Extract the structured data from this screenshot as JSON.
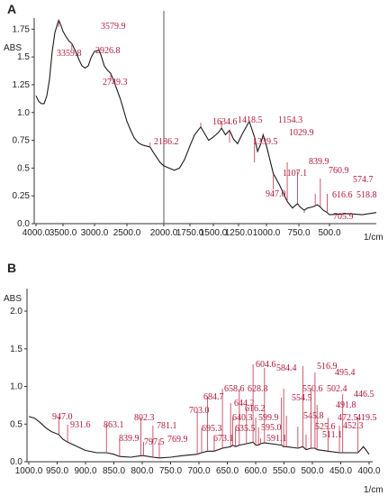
{
  "chart_data": [
    {
      "type": "line",
      "panel": "A",
      "ylabel": "ABS",
      "xunit": "1/cm",
      "xlim": [
        4000,
        400
      ],
      "ylim": [
        0,
        1.85
      ],
      "y_ticks": [
        0.0,
        0.25,
        0.5,
        0.75,
        1.0,
        1.25,
        1.5,
        1.75
      ],
      "y_tick_labels": [
        "0.0",
        "0.25",
        "0.5",
        "0.75",
        "1.0",
        "1.25",
        "1.5",
        "1.75"
      ],
      "x_ticks": [
        4000,
        3500,
        3000,
        2500,
        2000,
        1750,
        1500,
        1250,
        1000,
        750,
        500
      ],
      "x_tick_labels": [
        "4000.0",
        "3500.0",
        "3000.0",
        "2500.0",
        "2000.0",
        "1750.0",
        "1500.0",
        "1250.0",
        "1000.0",
        "750.0",
        "500.0"
      ],
      "divider_x": 2000,
      "x": [
        4000,
        3950,
        3900,
        3850,
        3800,
        3750,
        3700,
        3650,
        3600,
        3579.9,
        3550,
        3500,
        3450,
        3400,
        3359.8,
        3300,
        3250,
        3200,
        3150,
        3100,
        3050,
        3000,
        2926.8,
        2880,
        2850,
        2800,
        2749.3,
        2700,
        2650,
        2600,
        2550,
        2500,
        2450,
        2400,
        2350,
        2300,
        2250,
        2186.2,
        2150,
        2100,
        2050,
        2000,
        1950,
        1900,
        1850,
        1800,
        1750,
        1700,
        1634.6,
        1600,
        1550,
        1500,
        1450,
        1418.5,
        1380,
        1339.5,
        1300,
        1260,
        1220,
        1154.3,
        1107.1,
        1080,
        1050,
        1029.9,
        1000,
        947.0,
        900,
        860,
        839.9,
        800,
        760.9,
        740,
        705.9,
        680,
        640,
        616.6,
        600,
        574.7,
        550,
        518.8,
        500,
        460,
        430,
        400
      ],
      "y": [
        1.15,
        1.1,
        1.08,
        1.08,
        1.15,
        1.3,
        1.55,
        1.72,
        1.8,
        1.83,
        1.8,
        1.73,
        1.68,
        1.64,
        1.62,
        1.55,
        1.48,
        1.42,
        1.4,
        1.42,
        1.5,
        1.55,
        1.56,
        1.48,
        1.42,
        1.38,
        1.35,
        1.28,
        1.2,
        1.12,
        1.02,
        0.92,
        0.84,
        0.77,
        0.73,
        0.71,
        0.7,
        0.69,
        0.65,
        0.6,
        0.55,
        0.52,
        0.5,
        0.48,
        0.5,
        0.58,
        0.7,
        0.8,
        0.87,
        0.82,
        0.75,
        0.78,
        0.82,
        0.86,
        0.8,
        0.84,
        0.76,
        0.72,
        0.8,
        0.92,
        0.78,
        0.65,
        0.72,
        0.8,
        0.7,
        0.45,
        0.35,
        0.25,
        0.2,
        0.14,
        0.18,
        0.15,
        0.12,
        0.14,
        0.15,
        0.16,
        0.17,
        0.15,
        0.12,
        0.1,
        0.08,
        0.09,
        0.08,
        0.1
      ],
      "annotations": [
        {
          "label": "3579.9",
          "x": 3579.9
        },
        {
          "label": "3359.8",
          "x": 3359.8
        },
        {
          "label": "2926.8",
          "x": 2926.8
        },
        {
          "label": "2749.3",
          "x": 2749.3
        },
        {
          "label": "2186.2",
          "x": 2186.2
        },
        {
          "label": "1634.6",
          "x": 1634.6
        },
        {
          "label": "1418.5",
          "x": 1418.5
        },
        {
          "label": "1339.5",
          "x": 1339.5
        },
        {
          "label": "1154.3",
          "x": 1154.3
        },
        {
          "label": "1107.1",
          "x": 1107.1
        },
        {
          "label": "1029.9",
          "x": 1029.9
        },
        {
          "label": "947.0",
          "x": 947.0
        },
        {
          "label": "839.9",
          "x": 839.9
        },
        {
          "label": "760.9",
          "x": 760.9
        },
        {
          "label": "705.9",
          "x": 705.9
        },
        {
          "label": "616.6",
          "x": 616.6
        },
        {
          "label": "574.7",
          "x": 574.7
        },
        {
          "label": "518.8",
          "x": 518.8
        }
      ]
    },
    {
      "type": "line",
      "panel": "B",
      "ylabel": "ABS",
      "xunit": "1/cm",
      "xlim": [
        1000,
        400
      ],
      "ylim": [
        0,
        2.3
      ],
      "y_ticks": [
        0.0,
        0.5,
        1.0,
        1.5,
        2.0
      ],
      "y_tick_labels": [
        "0.0",
        "0.5",
        "1.0",
        "1.5",
        "2.0"
      ],
      "x_ticks": [
        1000,
        950,
        900,
        850,
        800,
        750,
        700,
        650,
        600,
        550,
        500,
        450,
        400
      ],
      "x_tick_labels": [
        "1000.0",
        "950.0",
        "900.0",
        "850.0",
        "800.0",
        "750.0",
        "700.0",
        "650.0",
        "600.0",
        "550.0",
        "500.0",
        "450.0",
        "400.0"
      ],
      "x": [
        1000,
        990,
        980,
        970,
        960,
        947.0,
        940,
        931.6,
        920,
        900,
        880,
        863.1,
        850,
        839.9,
        820,
        802.3,
        797.5,
        781.1,
        769.9,
        750,
        730,
        703.0,
        695.3,
        684.7,
        673.1,
        658.6,
        644.2,
        640.3,
        635.5,
        628.8,
        616.2,
        604.6,
        599.9,
        595.0,
        591.1,
        584.4,
        554.5,
        550.6,
        545.8,
        525.6,
        516.9,
        511.1,
        502.4,
        495.4,
        491.8,
        472.5,
        452.3,
        446.5,
        430,
        419.5,
        410,
        400
      ],
      "y": [
        0.6,
        0.58,
        0.52,
        0.45,
        0.4,
        0.36,
        0.3,
        0.26,
        0.22,
        0.15,
        0.12,
        0.12,
        0.1,
        0.07,
        0.06,
        0.08,
        0.08,
        0.06,
        0.05,
        0.06,
        0.08,
        0.1,
        0.12,
        0.14,
        0.14,
        0.18,
        0.2,
        0.22,
        0.2,
        0.22,
        0.24,
        0.26,
        0.22,
        0.22,
        0.24,
        0.25,
        0.22,
        0.2,
        0.2,
        0.18,
        0.2,
        0.16,
        0.18,
        0.18,
        0.16,
        0.14,
        0.12,
        0.12,
        0.12,
        0.12,
        0.2,
        0.1
      ],
      "annotations": [
        {
          "label": "947.0",
          "x": 947.0
        },
        {
          "label": "931.6",
          "x": 931.6
        },
        {
          "label": "863.1",
          "x": 863.1
        },
        {
          "label": "839.9",
          "x": 839.9
        },
        {
          "label": "802.3",
          "x": 802.3
        },
        {
          "label": "797.5",
          "x": 797.5
        },
        {
          "label": "781.1",
          "x": 781.1
        },
        {
          "label": "769.9",
          "x": 769.9
        },
        {
          "label": "703.0",
          "x": 703.0
        },
        {
          "label": "695.3",
          "x": 695.3
        },
        {
          "label": "684.7",
          "x": 684.7
        },
        {
          "label": "673.1",
          "x": 673.1
        },
        {
          "label": "658.6",
          "x": 658.6
        },
        {
          "label": "644.2",
          "x": 644.2
        },
        {
          "label": "640.3",
          "x": 640.3
        },
        {
          "label": "635.5",
          "x": 635.5
        },
        {
          "label": "628.8",
          "x": 628.8
        },
        {
          "label": "616.2",
          "x": 616.2
        },
        {
          "label": "604.6",
          "x": 604.6
        },
        {
          "label": "599.9",
          "x": 599.9
        },
        {
          "label": "595.0",
          "x": 595.0
        },
        {
          "label": "591.1",
          "x": 591.1
        },
        {
          "label": "584.4",
          "x": 584.4
        },
        {
          "label": "554.5",
          "x": 554.5
        },
        {
          "label": "550.6",
          "x": 550.6
        },
        {
          "label": "545.8",
          "x": 545.8
        },
        {
          "label": "525.6",
          "x": 525.6
        },
        {
          "label": "516.9",
          "x": 516.9
        },
        {
          "label": "511.1",
          "x": 511.1
        },
        {
          "label": "502.4",
          "x": 502.4
        },
        {
          "label": "495.4",
          "x": 495.4
        },
        {
          "label": "491.8",
          "x": 491.8
        },
        {
          "label": "472.5",
          "x": 472.5
        },
        {
          "label": "452.3",
          "x": 452.3
        },
        {
          "label": "446.5",
          "x": 446.5
        },
        {
          "label": "419.5",
          "x": 419.5
        }
      ]
    }
  ]
}
